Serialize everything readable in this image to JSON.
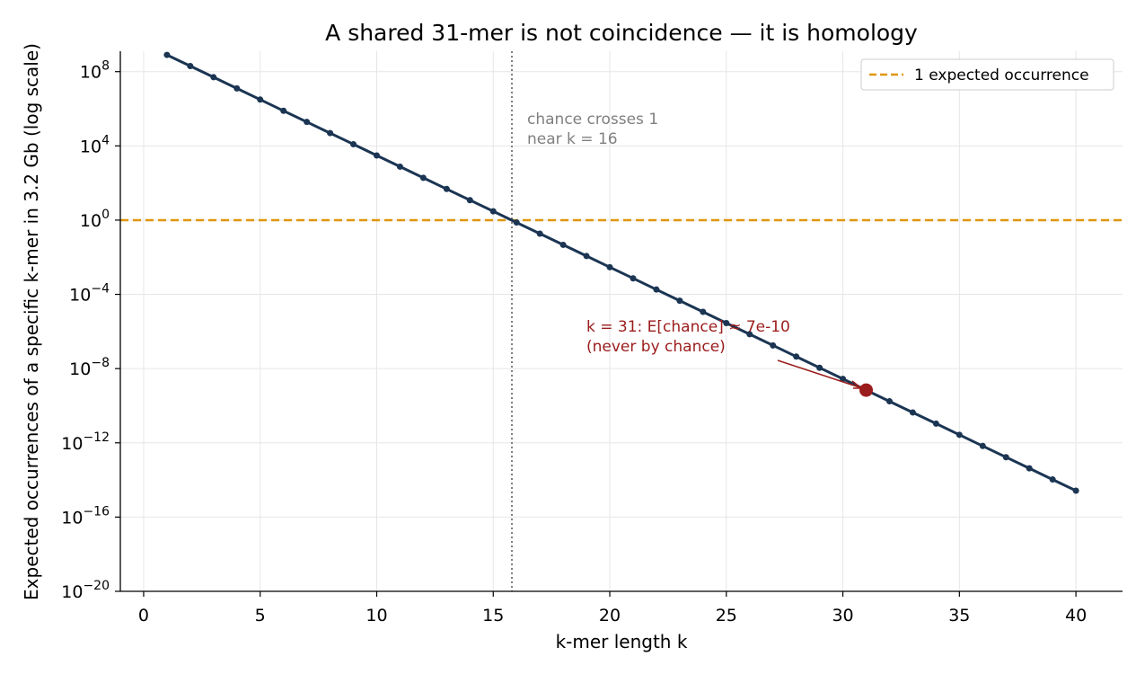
{
  "chart_data": {
    "type": "line",
    "title": "A shared 31-mer is not coincidence — it is homology",
    "xlabel": "k-mer length k",
    "ylabel": "Expected occurrences of a specific k-mer in 3.2 Gb (log scale)",
    "xlim": [
      -1,
      42
    ],
    "ylim_exponents": [
      -20,
      9.1
    ],
    "y_scale": "log",
    "x_ticks": [
      "0",
      "5",
      "10",
      "15",
      "20",
      "25",
      "30",
      "35",
      "40"
    ],
    "y_ticks": [
      {
        "base": "10",
        "exp": "8"
      },
      {
        "base": "10",
        "exp": "4"
      },
      {
        "base": "10",
        "exp": "0"
      },
      {
        "base": "10",
        "exp": "−4"
      },
      {
        "base": "10",
        "exp": "−8"
      },
      {
        "base": "10",
        "exp": "−12"
      },
      {
        "base": "10",
        "exp": "−16"
      },
      {
        "base": "10",
        "exp": "−20"
      }
    ],
    "series": [
      {
        "color": "#1b3553",
        "x": [
          1,
          2,
          3,
          4,
          5,
          6,
          7,
          8,
          9,
          10,
          11,
          12,
          13,
          14,
          15,
          16,
          17,
          18,
          19,
          20,
          21,
          22,
          23,
          24,
          25,
          26,
          27,
          28,
          29,
          30,
          31,
          32,
          33,
          34,
          35,
          36,
          37,
          38,
          39,
          40
        ],
        "y": [
          800000000.0,
          200000000.0,
          50000000.0,
          12500000.0,
          3125000.0,
          780000.0,
          195000.0,
          49000.0,
          12200.0,
          3050.0,
          760.0,
          190.0,
          47.7,
          11.9,
          2.98,
          0.745,
          0.186,
          0.0466,
          0.0116,
          0.00291,
          0.000728,
          0.000182,
          4.55e-05,
          1.14e-05,
          2.84e-06,
          7.11e-07,
          1.78e-07,
          4.44e-08,
          1.11e-08,
          2.78e-09,
          6.94e-10,
          1.73e-10,
          4.34e-11,
          1.08e-11,
          2.71e-12,
          6.78e-13,
          1.69e-13,
          4.24e-14,
          1.06e-14,
          2.65e-15
        ]
      }
    ],
    "reference_line": {
      "y": 1,
      "label": "1 expected occurrence",
      "color": "#e0960c"
    },
    "crossing_line": {
      "x": 15.8,
      "color": "#808080"
    },
    "highlight_point": {
      "x": 31,
      "y": 6.94e-10,
      "color": "#9b1c1c"
    },
    "annotations": {
      "crossing_line1": "chance crosses 1",
      "crossing_line2": "near k = 16",
      "highlight_line1": "k = 31:  E[chance] ≈ 7e-10",
      "highlight_line2": "(never by chance)"
    },
    "legend": {
      "position": "top-right"
    },
    "grid": true
  }
}
